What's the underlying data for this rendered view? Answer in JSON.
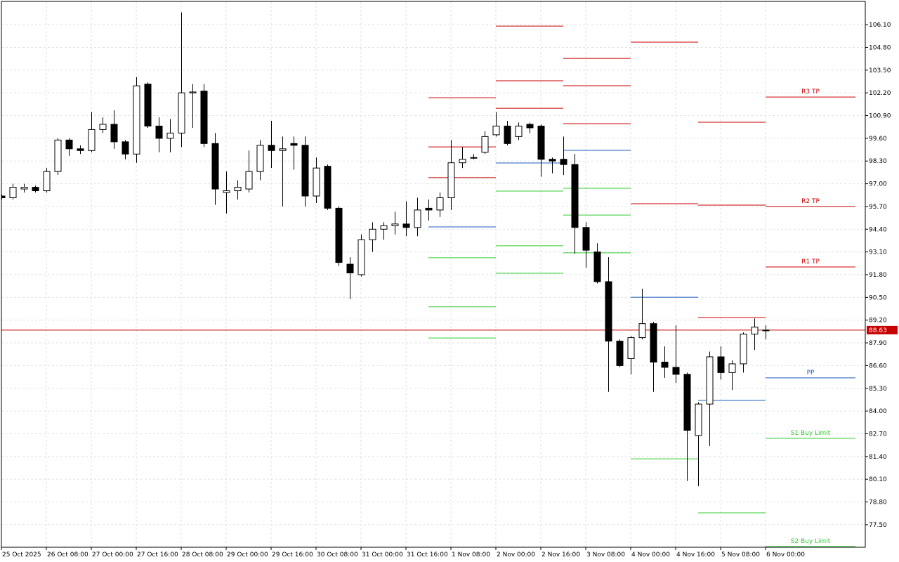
{
  "chart_data": {
    "type": "candlestick",
    "categories": [
      "25 Oct 2025",
      null,
      null,
      null,
      "26 Oct 08:00",
      null,
      null,
      null,
      "27 Oct 00:00",
      null,
      null,
      null,
      "27 Oct 16:00",
      null,
      null,
      null,
      "28 Oct 08:00",
      null,
      null,
      null,
      "29 Oct 00:00",
      null,
      null,
      null,
      "29 Oct 16:00",
      null,
      null,
      null,
      "30 Oct 08:00",
      null,
      null,
      null,
      "31 Oct 00:00",
      null,
      null,
      null,
      "31 Oct 16:00",
      null,
      null,
      null,
      "1 Nov 08:00",
      null,
      null,
      null,
      "2 Nov 00:00",
      null,
      null,
      null,
      "2 Nov 16:00",
      null,
      null,
      null,
      "3 Nov 08:00",
      null,
      null,
      null,
      "4 Nov 00:00",
      null,
      null,
      null,
      "4 Nov 16:00",
      null,
      null,
      null,
      "5 Nov 08:00",
      null,
      null,
      null,
      "6 Nov 00:00"
    ],
    "open": [
      96.3,
      96.2,
      96.7,
      96.8,
      96.6,
      97.7,
      99.5,
      99.0,
      98.9,
      100.1,
      100.4,
      99.4,
      98.7,
      102.7,
      100.3,
      99.6,
      99.9,
      102.2,
      102.3,
      99.3,
      96.5,
      96.6,
      96.7,
      97.7,
      99.2,
      98.9,
      99.3,
      99.2,
      96.3,
      98.0,
      95.6,
      92.4,
      91.8,
      93.8,
      94.4,
      94.6,
      94.7,
      94.5,
      95.6,
      95.5,
      96.2,
      98.2,
      98.5,
      98.8,
      99.8,
      100.3,
      99.7,
      100.4,
      100.3,
      98.4,
      98.4,
      98.1,
      94.5,
      93.1,
      91.4,
      88.0,
      87.0,
      88.2,
      89.0,
      86.8,
      86.5,
      86.1,
      82.6,
      84.4,
      87.1,
      86.2,
      86.7,
      88.4,
      88.6
    ],
    "high": [
      96.4,
      97.0,
      97.0,
      96.9,
      97.9,
      99.6,
      99.6,
      99.2,
      101.1,
      100.8,
      101.2,
      99.5,
      103.1,
      102.8,
      100.8,
      100.7,
      106.8,
      102.7,
      102.7,
      99.9,
      97.7,
      97.2,
      98.9,
      99.5,
      100.6,
      99.7,
      99.7,
      99.7,
      98.5,
      98.1,
      95.7,
      92.8,
      94.1,
      94.8,
      94.8,
      95.4,
      96.0,
      96.2,
      96.1,
      96.5,
      99.5,
      99.1,
      98.7,
      100.0,
      101.1,
      100.6,
      100.5,
      100.5,
      100.4,
      98.5,
      99.7,
      98.7,
      94.8,
      93.6,
      92.8,
      88.1,
      88.3,
      91.0,
      89.1,
      87.7,
      88.9,
      86.2,
      84.5,
      87.4,
      87.7,
      86.9,
      88.5,
      89.3,
      88.9
    ],
    "low": [
      96.1,
      96.1,
      96.5,
      96.5,
      96.5,
      97.5,
      98.6,
      98.7,
      98.8,
      99.9,
      99.0,
      98.4,
      98.2,
      100.2,
      98.8,
      98.8,
      99.1,
      100.2,
      99.1,
      95.8,
      95.3,
      96.1,
      96.5,
      97.2,
      97.9,
      95.7,
      97.8,
      95.7,
      95.9,
      95.5,
      92.3,
      90.4,
      91.7,
      93.1,
      93.8,
      94.1,
      94.0,
      94.0,
      94.9,
      95.1,
      95.5,
      97.9,
      98.4,
      98.7,
      99.7,
      99.2,
      99.5,
      99.9,
      97.4,
      97.6,
      97.5,
      93.0,
      92.2,
      91.3,
      85.1,
      86.5,
      86.1,
      88.1,
      85.1,
      85.9,
      85.6,
      80.0,
      79.7,
      82.0,
      85.8,
      85.2,
      86.2,
      87.5,
      88.1
    ],
    "close": [
      96.2,
      96.8,
      96.8,
      96.6,
      97.7,
      99.5,
      99.0,
      98.9,
      100.1,
      100.4,
      99.4,
      98.7,
      102.6,
      100.3,
      99.6,
      99.9,
      102.2,
      102.25,
      99.3,
      96.7,
      96.6,
      96.8,
      97.7,
      99.2,
      98.9,
      99.0,
      99.2,
      96.3,
      97.9,
      95.6,
      92.5,
      91.9,
      93.8,
      94.4,
      94.6,
      94.7,
      94.5,
      95.5,
      95.5,
      96.2,
      98.2,
      98.4,
      98.5,
      99.7,
      100.3,
      99.3,
      100.3,
      100.2,
      98.4,
      98.3,
      98.1,
      94.5,
      93.2,
      91.4,
      88.0,
      86.6,
      88.2,
      89.0,
      86.8,
      86.5,
      86.1,
      82.9,
      84.4,
      87.1,
      86.2,
      86.7,
      88.4,
      88.8,
      88.63
    ],
    "up_color": "#ffffff",
    "down_color": "#000000",
    "last_price": 88.63,
    "last_price_color": "#c80000",
    "ylim": [
      76.21,
      107.43
    ],
    "yticks": [
      {
        "value": 106.1,
        "label": "106.10"
      },
      {
        "value": 104.8,
        "label": "104.80"
      },
      {
        "value": 103.5,
        "label": "103.50"
      },
      {
        "value": 102.2,
        "label": "102.20"
      },
      {
        "value": 100.9,
        "label": "100.90"
      },
      {
        "value": 99.6,
        "label": "99.60"
      },
      {
        "value": 98.3,
        "label": "98.30"
      },
      {
        "value": 97.0,
        "label": "97.00"
      },
      {
        "value": 95.7,
        "label": "95.70"
      },
      {
        "value": 94.4,
        "label": "94.40"
      },
      {
        "value": 93.1,
        "label": "93.10"
      },
      {
        "value": 91.8,
        "label": "91.80"
      },
      {
        "value": 90.5,
        "label": "90.50"
      },
      {
        "value": 89.2,
        "label": "89.20"
      },
      {
        "value": 87.9,
        "label": "87.90"
      },
      {
        "value": 86.6,
        "label": "86.60"
      },
      {
        "value": 85.3,
        "label": "85.30"
      },
      {
        "value": 84.0,
        "label": "84.00"
      },
      {
        "value": 82.7,
        "label": "82.70"
      },
      {
        "value": 81.4,
        "label": "81.40"
      },
      {
        "value": 80.1,
        "label": "80.10"
      },
      {
        "value": 78.8,
        "label": "78.80"
      },
      {
        "value": 77.5,
        "label": "77.50"
      }
    ],
    "grid": true,
    "pivot_days": [
      {
        "levels": [
          {
            "value": 101.92,
            "color": "#c80000"
          },
          {
            "value": 99.11,
            "color": "#c80000"
          },
          {
            "value": 97.35,
            "color": "#c80000"
          },
          {
            "value": 94.53,
            "color": "#1f5fbf"
          },
          {
            "value": 92.77,
            "color": "#33cc33"
          },
          {
            "value": 89.96,
            "color": "#33cc33"
          },
          {
            "value": 88.18,
            "color": "#33cc33"
          }
        ]
      },
      {
        "levels": [
          {
            "value": 106.02,
            "color": "#c80000"
          },
          {
            "value": 102.89,
            "color": "#c80000"
          },
          {
            "value": 101.32,
            "color": "#c80000"
          },
          {
            "value": 98.19,
            "color": "#1f5fbf"
          },
          {
            "value": 96.58,
            "color": "#33cc33"
          },
          {
            "value": 93.45,
            "color": "#33cc33"
          },
          {
            "value": 91.88,
            "color": "#33cc33"
          }
        ]
      },
      {
        "levels": [
          {
            "value": 104.17,
            "color": "#c80000"
          },
          {
            "value": 102.61,
            "color": "#c80000"
          },
          {
            "value": 100.44,
            "color": "#c80000"
          },
          {
            "value": 98.91,
            "color": "#1f5fbf"
          },
          {
            "value": 96.74,
            "color": "#33cc33"
          },
          {
            "value": 95.21,
            "color": "#33cc33"
          },
          {
            "value": 93.05,
            "color": "#33cc33"
          }
        ]
      },
      {
        "levels": [
          {
            "value": 105.1,
            "color": "#c80000"
          },
          {
            "value": 95.86,
            "color": "#c80000"
          },
          {
            "value": 90.51,
            "color": "#1f5fbf"
          },
          {
            "value": 81.27,
            "color": "#33cc33"
          }
        ]
      },
      {
        "levels": [
          {
            "value": 100.52,
            "color": "#c80000"
          },
          {
            "value": 95.78,
            "color": "#c80000"
          },
          {
            "value": 89.35,
            "color": "#c80000"
          },
          {
            "value": 84.61,
            "color": "#1f5fbf"
          },
          {
            "value": 78.18,
            "color": "#33cc33"
          }
        ]
      },
      {
        "levels": [
          {
            "value": 101.96,
            "color": "#c80000",
            "label": "R3 TP"
          },
          {
            "value": 95.7,
            "color": "#c80000",
            "label": "R2 TP"
          },
          {
            "value": 92.24,
            "color": "#c80000",
            "label": "R1 TP"
          },
          {
            "value": 85.9,
            "color": "#1f5fbf",
            "label": "PP"
          },
          {
            "value": 82.44,
            "color": "#33cc33",
            "label": "S1 Buy Limit"
          },
          {
            "value": 76.25,
            "color": "#33cc33",
            "label": "S2 Buy Limit"
          }
        ]
      }
    ]
  }
}
